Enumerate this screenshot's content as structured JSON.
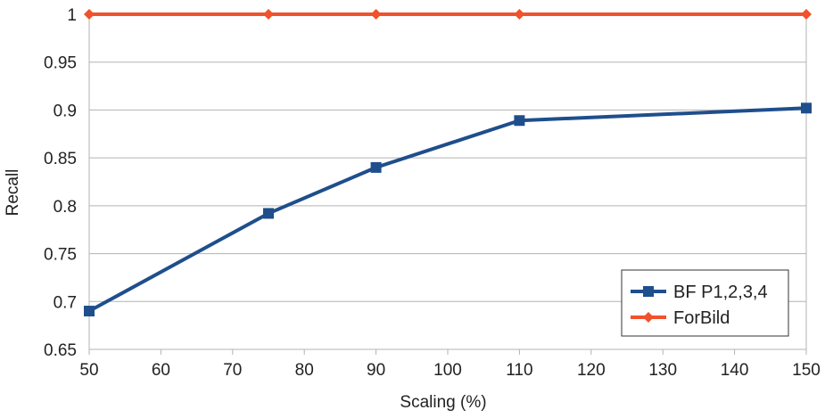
{
  "chart_data": {
    "type": "line",
    "title": "",
    "xlabel": "Scaling (%)",
    "ylabel": "Recall",
    "xlim": [
      50,
      150
    ],
    "ylim": [
      0.65,
      1
    ],
    "x_ticks": [
      50,
      60,
      70,
      80,
      90,
      100,
      110,
      120,
      130,
      140,
      150
    ],
    "y_ticks": [
      0.65,
      0.7,
      0.75,
      0.8,
      0.85,
      0.9,
      0.95,
      1
    ],
    "y_tick_labels": [
      "0.65",
      "0.7",
      "0.75",
      "0.8",
      "0.85",
      "0.9",
      "0.95",
      "1"
    ],
    "grid": "horizontal",
    "legend_position": "bottom-right",
    "series": [
      {
        "name": "BF P1,2,3,4",
        "color": "#1f4e8c",
        "marker": "square",
        "x": [
          50,
          75,
          90,
          110,
          150
        ],
        "values": [
          0.69,
          0.792,
          0.84,
          0.889,
          0.902
        ]
      },
      {
        "name": "ForBild",
        "color": "#f0522c",
        "marker": "diamond",
        "x": [
          50,
          75,
          90,
          110,
          150
        ],
        "values": [
          1,
          1,
          1,
          1,
          1
        ]
      }
    ]
  }
}
